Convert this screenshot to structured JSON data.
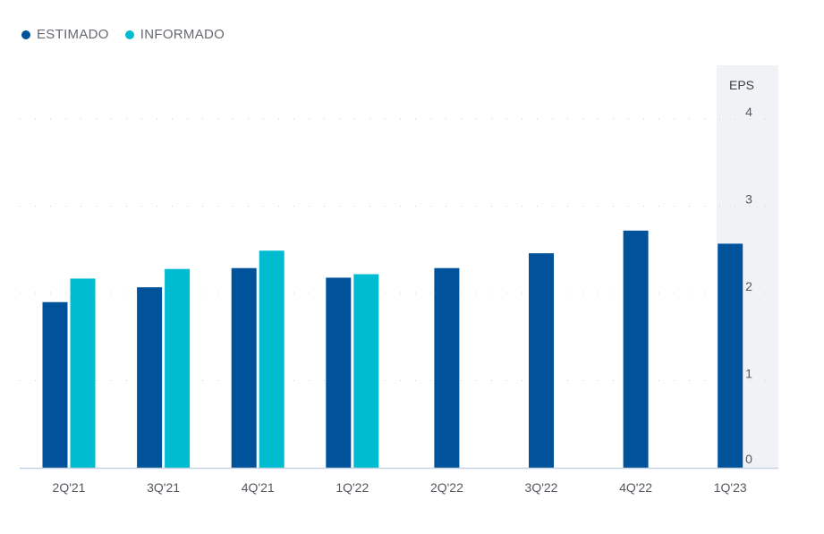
{
  "legend": [
    {
      "label": "ESTIMADO",
      "color": "#00539b"
    },
    {
      "label": "INFORMADO",
      "color": "#00bcd1"
    }
  ],
  "chart_data": {
    "type": "bar",
    "categories": [
      "2Q'21",
      "3Q'21",
      "4Q'21",
      "1Q'22",
      "2Q'22",
      "3Q'22",
      "4Q'22",
      "1Q'23"
    ],
    "series": [
      {
        "name": "ESTIMADO",
        "color": "#00539b",
        "values": [
          1.9,
          2.07,
          2.29,
          2.18,
          2.29,
          2.46,
          2.72,
          2.57
        ]
      },
      {
        "name": "INFORMADO",
        "color": "#00bcd1",
        "values": [
          2.17,
          2.28,
          2.49,
          2.22,
          null,
          null,
          null,
          null
        ]
      }
    ],
    "ylabel": "EPS",
    "yticks": [
      0,
      1,
      2,
      3,
      4
    ],
    "ylim": [
      0,
      4
    ],
    "grid": true,
    "legend_position": "top-left",
    "highlight_last_category": true
  }
}
